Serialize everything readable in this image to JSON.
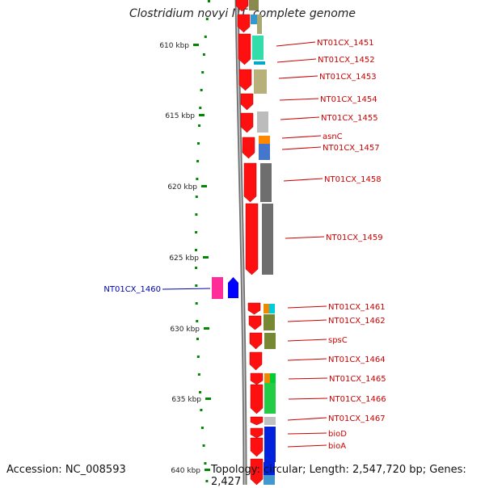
{
  "title": "Clostridium novyi NT, complete genome",
  "accession": "Accession: NC_008593",
  "topology": "Topology: circular; Length: 2,547,720 bp; Genes: 2,427",
  "colors": {
    "gene_red": "#ff1010",
    "gene_blue": "#0000ff",
    "label_red": "#cc0000",
    "label_blue": "#0000aa",
    "tick_green": "#008800"
  },
  "scale_labels": [
    "610 kbp",
    "615 kbp",
    "620 kbp",
    "625 kbp",
    "630 kbp",
    "635 kbp",
    "640 kbp"
  ],
  "forward_gene_labels": [
    "NT01CX_1451",
    "NT01CX_1452",
    "NT01CX_1453",
    "NT01CX_1454",
    "NT01CX_1455",
    "asnC",
    "NT01CX_1457",
    "NT01CX_1458",
    "NT01CX_1459",
    "NT01CX_1461",
    "NT01CX_1462",
    "spsC",
    "NT01CX_1464",
    "NT01CX_1465",
    "NT01CX_1466",
    "NT01CX_1467",
    "bioD",
    "bioA"
  ],
  "reverse_gene_labels": [
    "NT01CX_1460"
  ]
}
